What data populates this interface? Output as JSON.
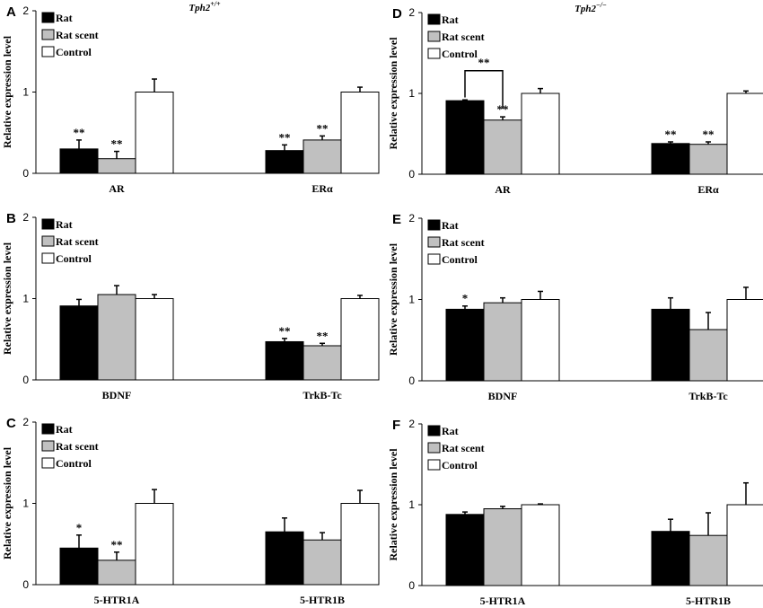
{
  "figure": {
    "genotypes": [
      {
        "name": "Tph2",
        "sup": "+/+"
      },
      {
        "name": "Tph2",
        "sup": "−/−"
      }
    ]
  },
  "legend": [
    "Rat",
    "Rat scent",
    "Control"
  ],
  "colors": {
    "rat": "#000000",
    "rat_scent": "#c0c0c0",
    "control": "#ffffff",
    "axis": "#000000"
  },
  "chart_data": [
    {
      "panel": "A",
      "type": "bar",
      "ylabel": "Relative expression level",
      "ylim": [
        0,
        2
      ],
      "yticks": [
        "0",
        "1",
        "2"
      ],
      "categories": [
        "AR",
        "ERα"
      ],
      "series": [
        {
          "name": "Rat",
          "values": [
            0.3,
            0.28
          ],
          "errors": [
            0.11,
            0.07
          ],
          "sig": [
            "**",
            "**"
          ]
        },
        {
          "name": "Rat scent",
          "values": [
            0.18,
            0.41
          ],
          "errors": [
            0.09,
            0.05
          ],
          "sig": [
            "**",
            "**"
          ]
        },
        {
          "name": "Control",
          "values": [
            1.0,
            1.0
          ],
          "errors": [
            0.16,
            0.06
          ],
          "sig": [
            "",
            ""
          ]
        }
      ]
    },
    {
      "panel": "B",
      "type": "bar",
      "ylabel": "Relative expression level",
      "ylim": [
        0,
        2
      ],
      "yticks": [
        "0",
        "1",
        "2"
      ],
      "categories": [
        "BDNF",
        "TrkB-Tc"
      ],
      "series": [
        {
          "name": "Rat",
          "values": [
            0.91,
            0.47
          ],
          "errors": [
            0.08,
            0.04
          ],
          "sig": [
            "",
            "**"
          ]
        },
        {
          "name": "Rat scent",
          "values": [
            1.05,
            0.42
          ],
          "errors": [
            0.11,
            0.03
          ],
          "sig": [
            "",
            "**"
          ]
        },
        {
          "name": "Control",
          "values": [
            1.0,
            1.0
          ],
          "errors": [
            0.05,
            0.04
          ],
          "sig": [
            "",
            ""
          ]
        }
      ]
    },
    {
      "panel": "C",
      "type": "bar",
      "ylabel": "Relative expression level",
      "ylim": [
        0,
        2
      ],
      "yticks": [
        "0",
        "1",
        "2"
      ],
      "categories": [
        "5-HTR1A",
        "5-HTR1B"
      ],
      "series": [
        {
          "name": "Rat",
          "values": [
            0.45,
            0.65
          ],
          "errors": [
            0.16,
            0.17
          ],
          "sig": [
            "*",
            ""
          ]
        },
        {
          "name": "Rat scent",
          "values": [
            0.3,
            0.55
          ],
          "errors": [
            0.1,
            0.09
          ],
          "sig": [
            "**",
            ""
          ]
        },
        {
          "name": "Control",
          "values": [
            1.0,
            1.0
          ],
          "errors": [
            0.17,
            0.16
          ],
          "sig": [
            "",
            ""
          ]
        }
      ]
    },
    {
      "panel": "D",
      "type": "bar",
      "ylabel": "Relative expression level",
      "ylim": [
        0,
        2
      ],
      "yticks": [
        "0",
        "1",
        "2"
      ],
      "categories": [
        "AR",
        "ERα"
      ],
      "series": [
        {
          "name": "Rat",
          "values": [
            0.91,
            0.38
          ],
          "errors": [
            0.01,
            0.02
          ],
          "sig": [
            "",
            "**"
          ]
        },
        {
          "name": "Rat scent",
          "values": [
            0.67,
            0.37
          ],
          "errors": [
            0.04,
            0.03
          ],
          "sig": [
            "**",
            "**"
          ]
        },
        {
          "name": "Control",
          "values": [
            1.0,
            1.0
          ],
          "errors": [
            0.06,
            0.03
          ],
          "sig": [
            "",
            ""
          ]
        }
      ],
      "bracket": {
        "category": 0,
        "from_series": 0,
        "to_series": 1,
        "label": "**"
      }
    },
    {
      "panel": "E",
      "type": "bar",
      "ylabel": "Relative expression level",
      "ylim": [
        0,
        2
      ],
      "yticks": [
        "0",
        "1",
        "2"
      ],
      "categories": [
        "BDNF",
        "TrkB-Tc"
      ],
      "series": [
        {
          "name": "Rat",
          "values": [
            0.88,
            0.88
          ],
          "errors": [
            0.04,
            0.14
          ],
          "sig": [
            "*",
            ""
          ]
        },
        {
          "name": "Rat scent",
          "values": [
            0.96,
            0.63
          ],
          "errors": [
            0.06,
            0.21
          ],
          "sig": [
            "",
            ""
          ]
        },
        {
          "name": "Control",
          "values": [
            1.0,
            1.0
          ],
          "errors": [
            0.1,
            0.15
          ],
          "sig": [
            "",
            ""
          ]
        }
      ]
    },
    {
      "panel": "F",
      "type": "bar",
      "ylabel": "Relative expression level",
      "ylim": [
        0,
        2
      ],
      "yticks": [
        "0",
        "1",
        "2"
      ],
      "categories": [
        "5-HTR1A",
        "5-HTR1B"
      ],
      "series": [
        {
          "name": "Rat",
          "values": [
            0.88,
            0.67
          ],
          "errors": [
            0.03,
            0.15
          ],
          "sig": [
            "",
            ""
          ]
        },
        {
          "name": "Rat scent",
          "values": [
            0.95,
            0.62
          ],
          "errors": [
            0.03,
            0.28
          ],
          "sig": [
            "",
            ""
          ]
        },
        {
          "name": "Control",
          "values": [
            1.0,
            1.0
          ],
          "errors": [
            0.01,
            0.27
          ],
          "sig": [
            "",
            ""
          ]
        }
      ]
    }
  ]
}
